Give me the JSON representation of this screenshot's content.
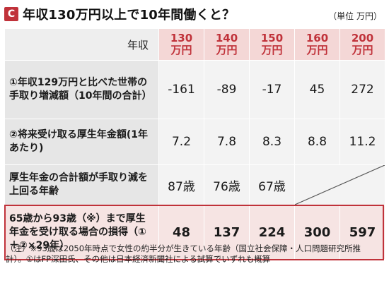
{
  "header": {
    "badge": "C",
    "title": "年収130万円以上で10年間働くと？",
    "unit": "（単位 万円）"
  },
  "table": {
    "corner_label": "年収",
    "columns": [
      {
        "amount": "130",
        "unit": "万円"
      },
      {
        "amount": "140",
        "unit": "万円"
      },
      {
        "amount": "150",
        "unit": "万円"
      },
      {
        "amount": "160",
        "unit": "万円"
      },
      {
        "amount": "200",
        "unit": "万円"
      }
    ],
    "rows": [
      {
        "label": "①年収129万円と比べた世帯の手取り増減額（10年間の合計）",
        "values": [
          "-161",
          "-89",
          "-17",
          "45",
          "272"
        ]
      },
      {
        "label": "②将来受け取る厚生年金額(1年あたり)",
        "values": [
          "7.2",
          "7.8",
          "8.3",
          "8.8",
          "11.2"
        ]
      },
      {
        "label": "厚生年金の合計額が手取り減を上回る年齢",
        "values": [
          "87歳",
          "76歳",
          "67歳"
        ]
      },
      {
        "label": "65歳から93歳（※）まで厚生年金を受け取る場合の損得（①＋②×29年）",
        "values": [
          "48",
          "137",
          "224",
          "300",
          "597"
        ]
      }
    ]
  },
  "note": "（注）※93歳は2050年時点で女性の約半分が生きている年齢（国立社会保障・人口問題研究所推計）。①はFP深田氏、その他は日本経済新聞社による試算でいずれも概算",
  "colors": {
    "accent": "#c0323a",
    "header_bg": "#f4d7d6",
    "label_bg": "#e6e6e6",
    "cell_bg": "#f3f3f3",
    "highlight_bg": "#f6e4e3"
  }
}
